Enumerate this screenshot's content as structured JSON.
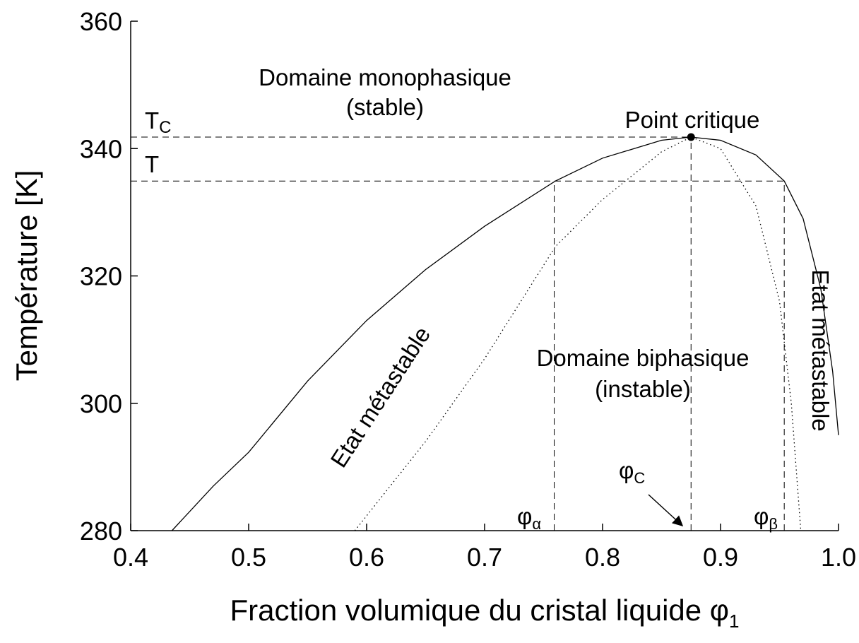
{
  "chart_data": {
    "type": "line",
    "xlabel": {
      "text": "Fraction volumique du cristal liquide φ",
      "sub": "1"
    },
    "ylabel": "Température [K]",
    "xlim": [
      0.4,
      1.0
    ],
    "ylim": [
      280,
      360
    ],
    "xticks": [
      0.4,
      0.5,
      0.6,
      0.7,
      0.8,
      0.9,
      {
        "value": 1.0,
        "label": "1.0"
      }
    ],
    "yticks": [
      280,
      300,
      320,
      340,
      360
    ],
    "series": [
      {
        "color": "#000000",
        "dash": "solid",
        "x": [
          0.435,
          0.47,
          0.5,
          0.55,
          0.6,
          0.65,
          0.7,
          0.76,
          0.8,
          0.85,
          0.875,
          0.9,
          0.93,
          0.954,
          0.97,
          0.985,
          0.995,
          1.0
        ],
        "values": [
          280,
          287,
          292.3,
          303.5,
          313,
          321,
          327.8,
          334.9,
          338.5,
          341.3,
          341.8,
          341.3,
          339,
          334.9,
          329,
          318,
          305,
          295
        ]
      },
      {
        "color": "#000000",
        "dash": "dotted",
        "x": [
          0.59,
          0.62,
          0.65,
          0.7,
          0.76,
          0.8,
          0.85,
          0.875,
          0.9,
          0.93,
          0.95,
          0.96,
          0.968
        ],
        "values": [
          280,
          287,
          294,
          307,
          324.6,
          332,
          339.5,
          341.8,
          340,
          331,
          316,
          300,
          280
        ]
      }
    ],
    "critical_point": {
      "label": "Point critique",
      "x": 0.875,
      "y": 341.8
    },
    "hlines": [
      {
        "y": 341.8,
        "label": "T",
        "sub": "C"
      },
      {
        "y": 334.9,
        "label": "T"
      }
    ],
    "vlines": [
      {
        "x": 0.759,
        "label": "φ",
        "sub": "α"
      },
      {
        "x": 0.875,
        "label": "φ",
        "sub": "C"
      },
      {
        "x": 0.954,
        "label": "φ",
        "sub": "β"
      }
    ],
    "annotations": [
      {
        "text": "Domaine monophasique"
      },
      {
        "text": "(stable)"
      },
      {
        "text": "Domaine biphasique"
      },
      {
        "text": "(instable)"
      },
      {
        "text": "Etat métastable"
      },
      {
        "text": "Etat métastable"
      }
    ]
  }
}
